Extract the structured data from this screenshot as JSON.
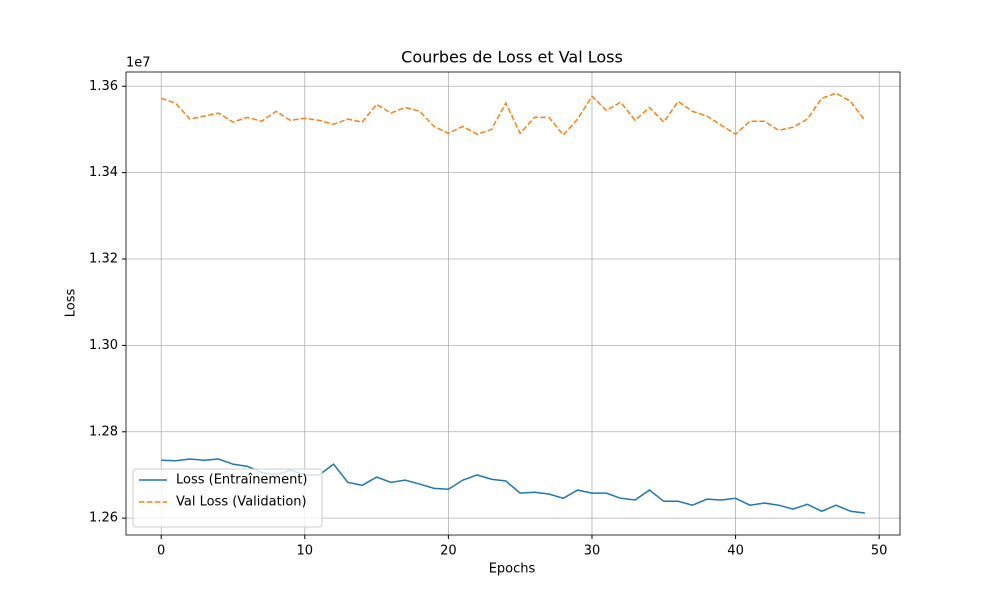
{
  "chart_data": {
    "type": "line",
    "title": "Courbes de Loss et Val Loss",
    "xlabel": "Epochs",
    "ylabel": "Loss",
    "y_offset_label": "1e7",
    "x": [
      0,
      1,
      2,
      3,
      4,
      5,
      6,
      7,
      8,
      9,
      10,
      11,
      12,
      13,
      14,
      15,
      16,
      17,
      18,
      19,
      20,
      21,
      22,
      23,
      24,
      25,
      26,
      27,
      28,
      29,
      30,
      31,
      32,
      33,
      34,
      35,
      36,
      37,
      38,
      39,
      40,
      41,
      42,
      43,
      44,
      45,
      46,
      47,
      48,
      49
    ],
    "series": [
      {
        "name": "Loss (Entraînement)",
        "color": "#1f77b4",
        "linestyle": "solid",
        "values": [
          12734000,
          12733000,
          12737000,
          12734000,
          12737000,
          12725000,
          12720000,
          12706000,
          12700000,
          12711000,
          12700000,
          12700000,
          12725000,
          12683000,
          12676000,
          12695000,
          12683000,
          12688000,
          12679000,
          12669000,
          12667000,
          12688000,
          12700000,
          12690000,
          12686000,
          12658000,
          12660000,
          12656000,
          12646000,
          12665000,
          12658000,
          12658000,
          12646000,
          12642000,
          12665000,
          12639000,
          12639000,
          12630000,
          12644000,
          12642000,
          12646000,
          12630000,
          12635000,
          12630000,
          12621000,
          12632000,
          12616000,
          12630000,
          12616000,
          12612000
        ]
      },
      {
        "name": "Val Loss (Validation)",
        "color": "#ff7f0e",
        "linestyle": "dashed",
        "values": [
          13572000,
          13561000,
          13524000,
          13531000,
          13538000,
          13517000,
          13528000,
          13519000,
          13542000,
          13521000,
          13526000,
          13521000,
          13512000,
          13524000,
          13517000,
          13558000,
          13538000,
          13551000,
          13542000,
          13507000,
          13491000,
          13507000,
          13489000,
          13500000,
          13561000,
          13491000,
          13528000,
          13528000,
          13487000,
          13524000,
          13577000,
          13544000,
          13563000,
          13521000,
          13551000,
          13517000,
          13565000,
          13542000,
          13531000,
          13510000,
          13489000,
          13519000,
          13519000,
          13498000,
          13505000,
          13524000,
          13572000,
          13584000,
          13565000,
          13521000
        ]
      }
    ],
    "xlim": [
      -2.45,
      51.45
    ],
    "xticks": [
      0,
      10,
      20,
      30,
      40,
      50
    ],
    "ylim": [
      12561000,
      13633000
    ],
    "yticks": [
      {
        "value": 12600000,
        "label": "1.26"
      },
      {
        "value": 12800000,
        "label": "1.28"
      },
      {
        "value": 13000000,
        "label": "1.30"
      },
      {
        "value": 13200000,
        "label": "1.32"
      },
      {
        "value": 13400000,
        "label": "1.34"
      },
      {
        "value": 13600000,
        "label": "1.36"
      }
    ],
    "grid": true,
    "legend": "lower left"
  }
}
